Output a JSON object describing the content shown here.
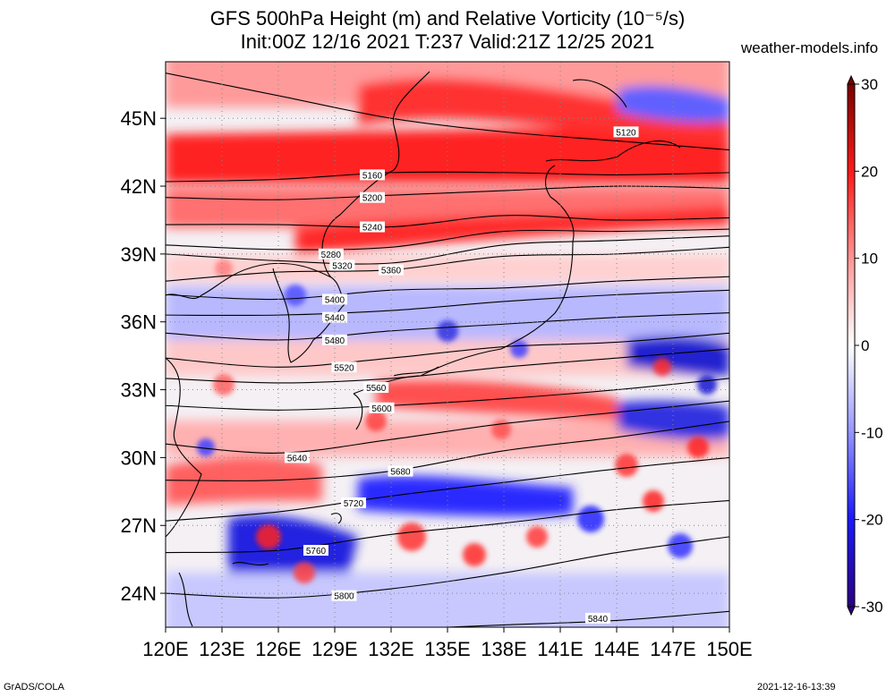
{
  "title": {
    "line1": "GFS 500hPa Height (m) and Relative Vorticity (10⁻⁵/s)",
    "line2": "Init:00Z 12/16 2021 T:237 Valid:21Z 12/25 2021"
  },
  "brand": "weather-models.info",
  "footer": {
    "left": "GrADS/COLA",
    "right": "2021-12-16-13:39"
  },
  "map": {
    "lon_labels": [
      "120E",
      "123E",
      "126E",
      "129E",
      "132E",
      "135E",
      "138E",
      "141E",
      "144E",
      "147E",
      "150E"
    ],
    "lat_labels": [
      "45N",
      "42N",
      "39N",
      "36N",
      "33N",
      "30N",
      "27N",
      "24N"
    ],
    "lat_values": [
      45,
      42,
      39,
      36,
      33,
      30,
      27,
      24
    ],
    "lon_values": [
      120,
      123,
      126,
      129,
      132,
      135,
      138,
      141,
      144,
      147,
      150
    ],
    "extent": {
      "lon": [
        120,
        150
      ],
      "lat": [
        22.5,
        47.5
      ]
    }
  },
  "colorbar": {
    "labels": [
      "30",
      "20",
      "10",
      "0",
      "-10",
      "-20",
      "-30"
    ],
    "values": [
      30,
      20,
      10,
      0,
      -10,
      -20,
      -30
    ],
    "colors": {
      "high": "#8b0000",
      "mid_high": "#ff1a1a",
      "zero": "#ffffff",
      "mid_low": "#1a1aff",
      "low": "#2a0080"
    }
  },
  "contours": [
    {
      "label": "5120",
      "lat": [
        47.0,
        46.0,
        45.0,
        44.4,
        44.0,
        43.6
      ],
      "lonlab": 144.5,
      "latlab": 44.4
    },
    {
      "label": "5160",
      "lat": [
        42.2,
        42.3,
        42.6,
        42.6,
        42.5,
        42.6
      ],
      "lonlab": 131.0,
      "latlab": 42.5
    },
    {
      "label": "5200",
      "lat": [
        41.5,
        41.4,
        41.6,
        41.8,
        42.0,
        41.9
      ],
      "lonlab": 131.0,
      "latlab": 41.5
    },
    {
      "label": "5240",
      "lat": [
        40.3,
        40.3,
        40.2,
        40.7,
        40.5,
        40.6
      ],
      "lonlab": 131.0,
      "latlab": 40.2
    },
    {
      "label": "5280",
      "lat": [
        39.4,
        39.2,
        39.3,
        40.0,
        40.0,
        40.1
      ],
      "lonlab": 128.8,
      "latlab": 39.0
    },
    {
      "label": "5320",
      "lat": [
        39.0,
        38.7,
        38.6,
        39.4,
        39.6,
        39.8
      ],
      "lonlab": 129.4,
      "latlab": 38.5
    },
    {
      "label": "5360",
      "lat": [
        37.8,
        38.2,
        38.3,
        38.9,
        39.0,
        39.3
      ],
      "lonlab": 132.0,
      "latlab": 38.3
    },
    {
      "label": "5400",
      "lat": [
        37.2,
        37.0,
        37.4,
        37.5,
        37.8,
        38.0
      ],
      "lonlab": 129.0,
      "latlab": 37.0
    },
    {
      "label": "5440",
      "lat": [
        36.3,
        36.3,
        36.5,
        36.9,
        37.2,
        37.4
      ],
      "lonlab": 129.0,
      "latlab": 36.2
    },
    {
      "label": "5480",
      "lat": [
        35.5,
        35.2,
        35.6,
        35.9,
        36.2,
        36.4
      ],
      "lonlab": 129.0,
      "latlab": 35.2
    },
    {
      "label": "5520",
      "lat": [
        34.4,
        34.0,
        34.4,
        34.9,
        35.1,
        35.5
      ],
      "lonlab": 129.5,
      "latlab": 34.0
    },
    {
      "label": "5560",
      "lat": [
        33.5,
        33.3,
        33.5,
        34.0,
        34.4,
        34.8
      ],
      "lonlab": 131.2,
      "latlab": 33.1
    },
    {
      "label": "5600",
      "lat": [
        32.3,
        32.1,
        32.3,
        32.6,
        33.0,
        33.5
      ],
      "lonlab": 131.5,
      "latlab": 32.2
    },
    {
      "label": "5640",
      "lat": [
        30.6,
        30.2,
        30.8,
        31.5,
        32.0,
        32.5
      ],
      "lonlab": 127.0,
      "latlab": 30.0
    },
    {
      "label": "5680",
      "lat": [
        29.0,
        29.0,
        29.4,
        30.3,
        30.9,
        31.6
      ],
      "lonlab": 132.5,
      "latlab": 29.4
    },
    {
      "label": "5720",
      "lat": [
        27.2,
        27.6,
        28.3,
        28.9,
        29.5,
        30.0
      ],
      "lonlab": 130.0,
      "latlab": 28.0
    },
    {
      "label": "5760",
      "lat": [
        25.8,
        25.9,
        26.6,
        27.1,
        27.7,
        28.1
      ],
      "lonlab": 128.0,
      "latlab": 25.9
    },
    {
      "label": "5800",
      "lat": [
        24.0,
        23.8,
        24.2,
        24.9,
        25.8,
        26.5
      ],
      "lonlab": 129.5,
      "latlab": 23.9
    },
    {
      "label": "5840",
      "lat": [
        22.3,
        22.2,
        22.4,
        22.6,
        22.8,
        23.2
      ],
      "lonlab": 143.0,
      "latlab": 22.9
    }
  ]
}
